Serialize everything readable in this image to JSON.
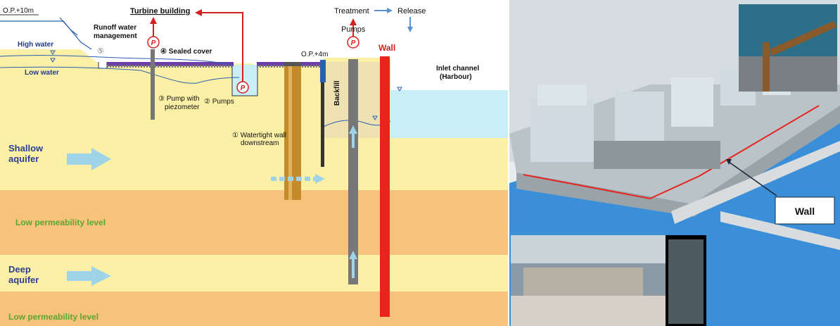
{
  "left_diagram": {
    "op_top": "O.P.+10m",
    "turbine_building": "Turbine building",
    "treatment": "Treatment",
    "release": "Release",
    "pumps_top": "Pumps",
    "wall": "Wall",
    "runoff_line1": "Runoff water",
    "runoff_line2": "management",
    "circle5": "⑤",
    "high_water": "High water",
    "low_water": "Low water",
    "sealed_cover": "④ Sealed cover",
    "op_4m": "O.P.+4m",
    "inlet_line1": "Inlet channel",
    "inlet_line2": "(Harbour)",
    "backfill": "Backfill",
    "pump_piezo_line1": "③ Pump with",
    "pump_piezo_line2": "piezometer",
    "pumps_2": "② Pumps",
    "watertight_line1": "① Watertight wall",
    "watertight_line2": "downstream",
    "shallow_line1": "Shallow",
    "shallow_line2": "aquifer",
    "deep_line1": "Deep",
    "deep_line2": "aquifer",
    "low_perm_1": "Low permeability level",
    "low_perm_2": "Low permeability level",
    "pump_symbol": "P"
  },
  "right_panel": {
    "wall_label": "Wall"
  },
  "colors": {
    "shallow_soil": "#fbf0a6",
    "low_perm": "#f6c27c",
    "water": "#c9eef6",
    "wall_red": "#e8241f",
    "sea_blue": "#3b8fd8"
  }
}
